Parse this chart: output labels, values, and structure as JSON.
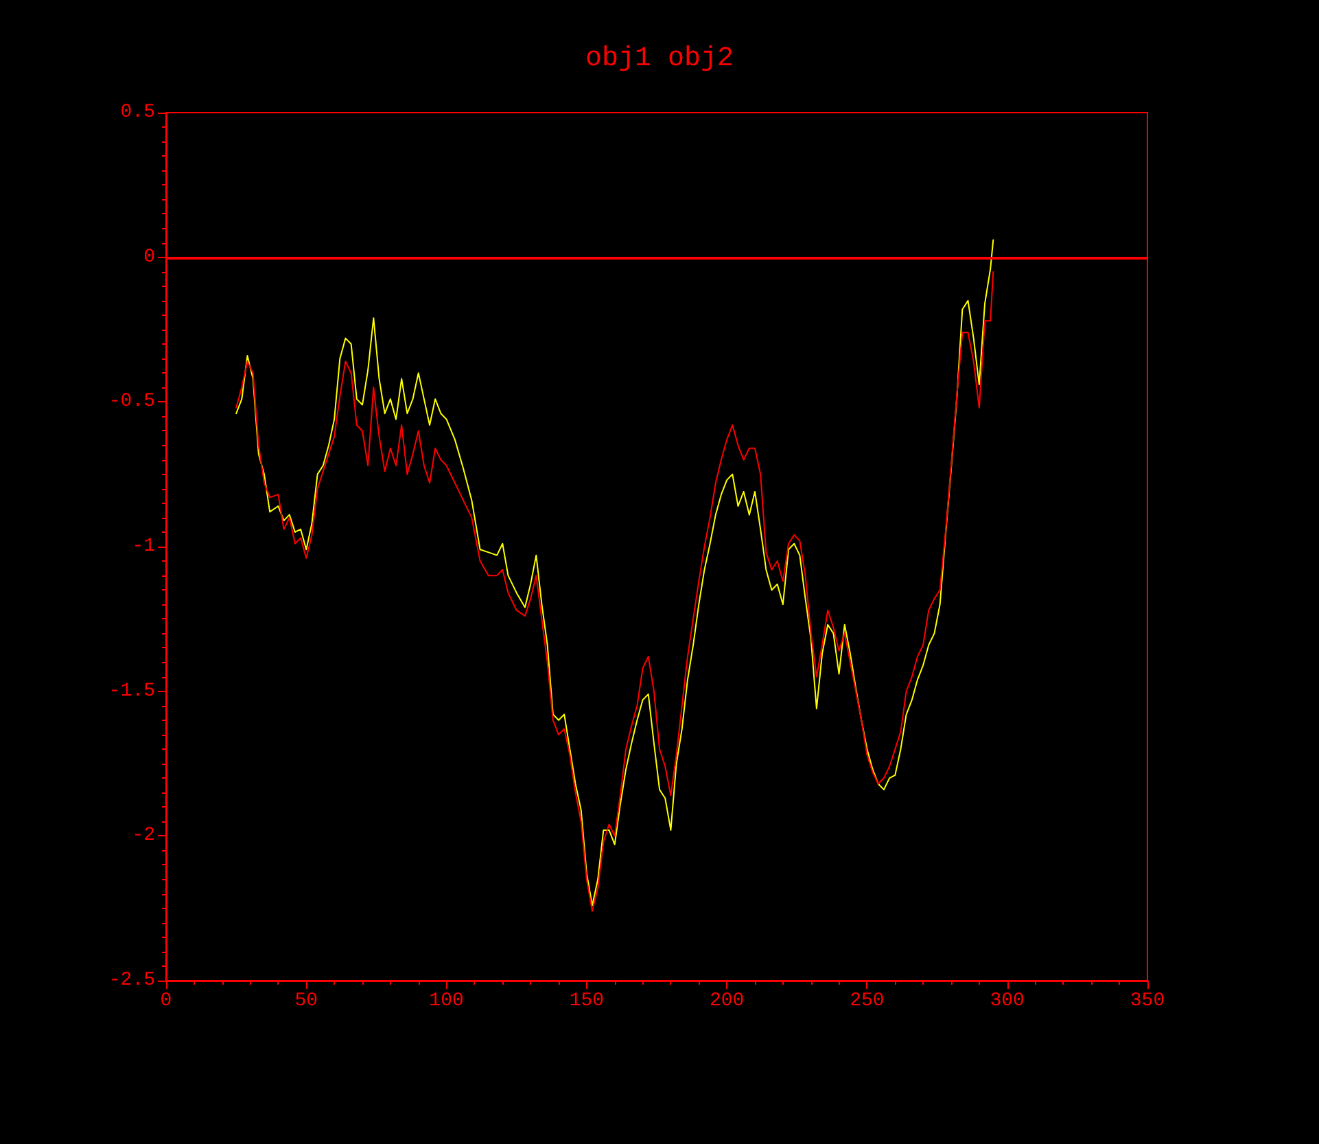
{
  "chart_data": {
    "type": "line",
    "title": "obj1 obj2",
    "xlim": [
      0,
      350
    ],
    "xticks": [
      0,
      50,
      100,
      150,
      200,
      250,
      300,
      350
    ],
    "ylim": [
      -2.5,
      0.5
    ],
    "yticks": [
      -2.5,
      -2,
      -1.5,
      -1,
      -0.5,
      0,
      0.5
    ],
    "grid": false,
    "marker": "none",
    "line_style": "solid",
    "ref_lines": [
      {
        "axis": "y",
        "value": 0,
        "color": "#ff0000"
      }
    ],
    "series": [
      {
        "color": "#ffff00",
        "x": [
          25,
          27,
          29,
          31,
          33,
          35,
          37,
          40,
          42,
          44,
          46,
          48,
          50,
          52,
          54,
          56,
          58,
          60,
          62,
          64,
          66,
          68,
          70,
          72,
          74,
          76,
          78,
          80,
          82,
          84,
          86,
          88,
          90,
          92,
          94,
          96,
          98,
          100,
          103,
          106,
          109,
          112,
          115,
          118,
          120,
          122,
          125,
          128,
          130,
          132,
          134,
          136,
          138,
          140,
          142,
          144,
          146,
          148,
          150,
          152,
          154,
          156,
          158,
          160,
          162,
          164,
          166,
          168,
          170,
          172,
          174,
          176,
          178,
          180,
          182,
          184,
          186,
          188,
          190,
          192,
          194,
          196,
          198,
          200,
          202,
          204,
          206,
          208,
          210,
          212,
          214,
          216,
          218,
          220,
          222,
          224,
          226,
          228,
          230,
          232,
          234,
          236,
          238,
          240,
          242,
          244,
          246,
          248,
          250,
          252,
          254,
          256,
          258,
          260,
          262,
          264,
          266,
          268,
          270,
          272,
          274,
          276,
          278,
          280,
          282,
          284,
          286,
          288,
          290,
          292,
          294,
          295
        ],
        "values": [
          -0.54,
          -0.49,
          -0.34,
          -0.42,
          -0.68,
          -0.75,
          -0.88,
          -0.86,
          -0.91,
          -0.89,
          -0.95,
          -0.94,
          -1.01,
          -0.92,
          -0.75,
          -0.72,
          -0.65,
          -0.56,
          -0.35,
          -0.28,
          -0.3,
          -0.49,
          -0.51,
          -0.39,
          -0.21,
          -0.42,
          -0.54,
          -0.49,
          -0.56,
          -0.42,
          -0.54,
          -0.49,
          -0.4,
          -0.49,
          -0.58,
          -0.49,
          -0.54,
          -0.56,
          -0.63,
          -0.73,
          -0.84,
          -1.01,
          -1.02,
          -1.03,
          -0.99,
          -1.1,
          -1.16,
          -1.21,
          -1.13,
          -1.03,
          -1.2,
          -1.34,
          -1.58,
          -1.6,
          -1.58,
          -1.7,
          -1.82,
          -1.91,
          -2.13,
          -2.24,
          -2.15,
          -1.98,
          -1.98,
          -2.03,
          -1.89,
          -1.77,
          -1.68,
          -1.6,
          -1.53,
          -1.51,
          -1.68,
          -1.84,
          -1.87,
          -1.98,
          -1.75,
          -1.63,
          -1.46,
          -1.34,
          -1.2,
          -1.08,
          -0.99,
          -0.89,
          -0.82,
          -0.77,
          -0.75,
          -0.86,
          -0.81,
          -0.89,
          -0.81,
          -0.94,
          -1.08,
          -1.15,
          -1.13,
          -1.2,
          -1.01,
          -0.99,
          -1.03,
          -1.18,
          -1.32,
          -1.56,
          -1.37,
          -1.27,
          -1.3,
          -1.44,
          -1.27,
          -1.37,
          -1.49,
          -1.6,
          -1.7,
          -1.77,
          -1.82,
          -1.84,
          -1.8,
          -1.79,
          -1.7,
          -1.58,
          -1.53,
          -1.46,
          -1.41,
          -1.34,
          -1.3,
          -1.2,
          -0.96,
          -0.73,
          -0.49,
          -0.18,
          -0.15,
          -0.28,
          -0.44,
          -0.16,
          -0.04,
          0.06
        ]
      },
      {
        "color": "#ff0000",
        "x": [
          25,
          27,
          29,
          31,
          33,
          35,
          37,
          40,
          42,
          44,
          46,
          48,
          50,
          52,
          54,
          56,
          58,
          60,
          62,
          64,
          66,
          68,
          70,
          72,
          74,
          76,
          78,
          80,
          82,
          84,
          86,
          88,
          90,
          92,
          94,
          96,
          98,
          100,
          103,
          106,
          109,
          112,
          115,
          118,
          120,
          122,
          125,
          128,
          130,
          132,
          134,
          136,
          138,
          140,
          142,
          144,
          146,
          148,
          150,
          152,
          154,
          156,
          158,
          160,
          162,
          164,
          166,
          168,
          170,
          172,
          174,
          176,
          178,
          180,
          182,
          184,
          186,
          188,
          190,
          192,
          194,
          196,
          198,
          200,
          202,
          204,
          206,
          208,
          210,
          212,
          214,
          216,
          218,
          220,
          222,
          224,
          226,
          228,
          230,
          232,
          234,
          236,
          238,
          240,
          242,
          244,
          246,
          248,
          250,
          252,
          254,
          256,
          258,
          260,
          262,
          264,
          266,
          268,
          270,
          272,
          274,
          276,
          278,
          280,
          282,
          284,
          286,
          288,
          290,
          292,
          294,
          295
        ],
        "values": [
          -0.52,
          -0.45,
          -0.36,
          -0.4,
          -0.65,
          -0.78,
          -0.83,
          -0.82,
          -0.94,
          -0.9,
          -0.99,
          -0.97,
          -1.04,
          -0.96,
          -0.8,
          -0.74,
          -0.68,
          -0.62,
          -0.48,
          -0.36,
          -0.4,
          -0.58,
          -0.6,
          -0.72,
          -0.45,
          -0.62,
          -0.74,
          -0.66,
          -0.72,
          -0.58,
          -0.75,
          -0.68,
          -0.6,
          -0.72,
          -0.78,
          -0.66,
          -0.7,
          -0.72,
          -0.78,
          -0.84,
          -0.9,
          -1.05,
          -1.1,
          -1.1,
          -1.08,
          -1.16,
          -1.22,
          -1.24,
          -1.18,
          -1.1,
          -1.25,
          -1.4,
          -1.6,
          -1.65,
          -1.63,
          -1.72,
          -1.85,
          -1.95,
          -2.15,
          -2.26,
          -2.18,
          -2.02,
          -1.96,
          -2.0,
          -1.86,
          -1.7,
          -1.62,
          -1.55,
          -1.42,
          -1.38,
          -1.5,
          -1.7,
          -1.76,
          -1.86,
          -1.72,
          -1.55,
          -1.38,
          -1.25,
          -1.12,
          -1.0,
          -0.9,
          -0.78,
          -0.7,
          -0.63,
          -0.58,
          -0.65,
          -0.7,
          -0.66,
          -0.66,
          -0.75,
          -1.02,
          -1.08,
          -1.05,
          -1.12,
          -0.99,
          -0.96,
          -0.98,
          -1.1,
          -1.3,
          -1.45,
          -1.34,
          -1.22,
          -1.28,
          -1.36,
          -1.3,
          -1.4,
          -1.5,
          -1.6,
          -1.72,
          -1.78,
          -1.82,
          -1.8,
          -1.76,
          -1.7,
          -1.64,
          -1.5,
          -1.45,
          -1.38,
          -1.34,
          -1.22,
          -1.18,
          -1.15,
          -0.95,
          -0.72,
          -0.48,
          -0.26,
          -0.26,
          -0.36,
          -0.52,
          -0.22,
          -0.22,
          -0.05
        ]
      }
    ]
  }
}
